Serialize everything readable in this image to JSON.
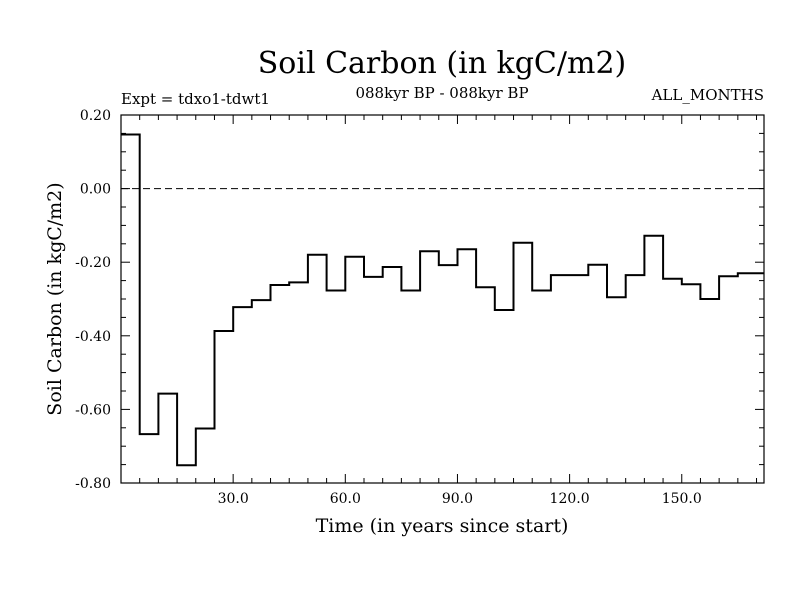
{
  "chart_data": {
    "type": "step",
    "title": "Soil Carbon (in kgC/m2)",
    "subtitle": "088kyr BP - 088kyr BP",
    "expt_label": "Expt = tdxo1-tdwt1",
    "months_label": "ALL_MONTHS",
    "xlabel": "Time (in years since start)",
    "ylabel": "Soil Carbon (in kgC/m2)",
    "xlim": [
      0,
      172
    ],
    "ylim": [
      -0.8,
      0.2
    ],
    "x_ticks": [
      30,
      60,
      90,
      120,
      150
    ],
    "x_tick_labels": [
      "30.0",
      "60.0",
      "90.0",
      "120.0",
      "150.0"
    ],
    "y_ticks": [
      0.2,
      0.0,
      -0.2,
      -0.4,
      -0.6,
      -0.8
    ],
    "y_tick_labels": [
      "0.20",
      "0.00",
      "-0.20",
      "-0.40",
      "-0.60",
      "-0.80"
    ],
    "reference_line": {
      "y": 0.0,
      "style": "dashed"
    },
    "series": [
      {
        "name": "Soil Carbon",
        "x_edges": [
          0,
          5,
          10,
          15,
          20,
          25,
          30,
          35,
          40,
          45,
          50,
          55,
          60,
          65,
          70,
          75,
          80,
          85,
          90,
          95,
          100,
          105,
          110,
          115,
          120,
          125,
          130,
          135,
          140,
          145,
          150,
          155,
          160,
          165,
          172
        ],
        "values": [
          0.147,
          -0.667,
          -0.557,
          -0.752,
          -0.652,
          -0.387,
          -0.322,
          -0.303,
          -0.262,
          -0.255,
          -0.18,
          -0.277,
          -0.185,
          -0.24,
          -0.213,
          -0.277,
          -0.17,
          -0.208,
          -0.165,
          -0.268,
          -0.33,
          -0.147,
          -0.277,
          -0.235,
          -0.235,
          -0.207,
          -0.295,
          -0.235,
          -0.128,
          -0.245,
          -0.26,
          -0.3,
          -0.238,
          -0.23
        ]
      }
    ]
  }
}
